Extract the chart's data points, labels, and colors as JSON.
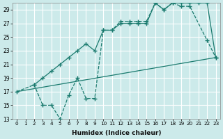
{
  "xlabel": "Humidex (Indice chaleur)",
  "bg_color": "#cceaea",
  "grid_color": "#ffffff",
  "line_color": "#1a7a6e",
  "xlim": [
    -0.5,
    23.5
  ],
  "ylim": [
    13,
    30
  ],
  "yticks": [
    13,
    15,
    17,
    19,
    21,
    23,
    25,
    27,
    29
  ],
  "xticks": [
    0,
    1,
    2,
    3,
    4,
    5,
    6,
    7,
    8,
    9,
    10,
    11,
    12,
    13,
    14,
    15,
    16,
    17,
    18,
    19,
    20,
    21,
    22,
    23
  ],
  "line1_x": [
    0,
    23
  ],
  "line1_y": [
    17,
    22
  ],
  "line2_x": [
    0,
    2,
    3,
    4,
    5,
    6,
    7,
    8,
    9,
    10,
    11,
    12,
    13,
    14,
    15,
    16,
    17,
    18,
    19,
    20,
    22,
    23
  ],
  "line2_y": [
    17,
    18,
    15,
    15,
    13,
    16.5,
    19,
    16,
    16,
    26,
    26,
    27.3,
    27.3,
    27.3,
    27.3,
    30,
    29,
    30,
    29.5,
    29.5,
    24.5,
    22
  ],
  "line3_x": [
    2,
    3,
    4,
    5,
    6,
    7,
    8,
    9,
    10,
    11,
    12,
    13,
    14,
    15,
    16,
    17,
    18,
    19,
    20,
    21,
    22,
    23
  ],
  "line3_y": [
    18,
    19,
    20,
    21,
    22,
    23,
    24,
    23,
    26,
    26,
    27,
    27,
    27,
    27,
    30,
    29,
    30,
    30,
    30,
    30,
    30,
    22
  ]
}
